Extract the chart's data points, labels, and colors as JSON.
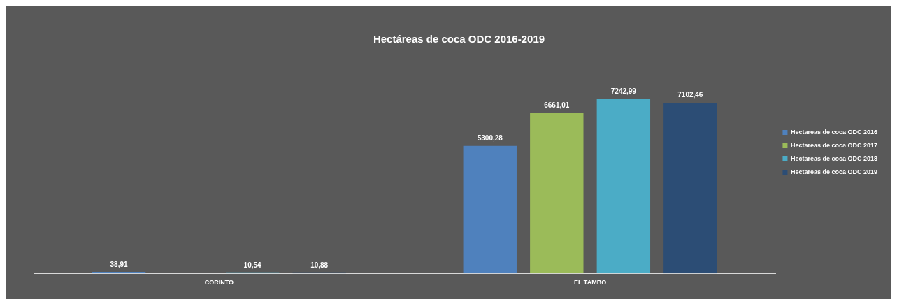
{
  "chart_data": {
    "type": "bar",
    "title": "Hectáreas de coca ODC 2016-2019",
    "categories": [
      "CORINTO",
      "EL TAMBO"
    ],
    "series": [
      {
        "name": "Hectareas de coca ODC 2016",
        "color": "#4f81bd",
        "values": [
          38.91,
          5300.28
        ],
        "value_labels": [
          "38,91",
          "5300,28"
        ]
      },
      {
        "name": "Hectareas de coca ODC 2017",
        "color": "#9bbb59",
        "values": [
          null,
          6661.01
        ],
        "value_labels": [
          null,
          "6661,01"
        ]
      },
      {
        "name": "Hectareas de coca ODC 2018",
        "color": "#4bacc6",
        "values": [
          10.54,
          7242.99
        ],
        "value_labels": [
          "10,54",
          "7242,99"
        ]
      },
      {
        "name": "Hectareas de coca ODC 2019",
        "color": "#2c4d75",
        "values": [
          10.88,
          7102.46
        ],
        "value_labels": [
          "10,88",
          "7102,46"
        ]
      }
    ],
    "legend": "right",
    "grid": false
  }
}
